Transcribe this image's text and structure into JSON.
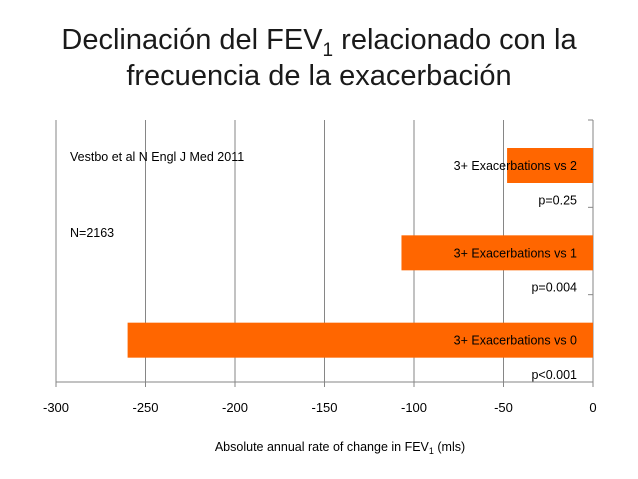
{
  "slide": {
    "title_part1": "Declinación del FEV",
    "title_sub": "1",
    "title_part2": " relacionado con la",
    "title_line2": "frecuencia de la exacerbación"
  },
  "chart_data": {
    "type": "bar",
    "orientation": "horizontal",
    "categories": [
      "3+ Exacerbations vs 2",
      "3+ Exacerbations vs 1",
      "3+ Exacerbations vs 0"
    ],
    "values": [
      -48,
      -107,
      -260
    ],
    "p_values": [
      "p=0.25",
      "p=0.004",
      "p<0.001"
    ],
    "xlim": [
      -300,
      0
    ],
    "xticks": [
      -300,
      -250,
      -200,
      -150,
      -100,
      -50,
      0
    ],
    "xlabel_prefix": "Absolute annual rate of change in FEV",
    "xlabel_sub": "1",
    "xlabel_suffix": " (mls)",
    "annotations": [
      "Vestbo et al N Engl J Med 2011",
      "N=2163"
    ],
    "colors": {
      "bar": "#FF6600",
      "grid": "#868686"
    },
    "grid": true
  }
}
